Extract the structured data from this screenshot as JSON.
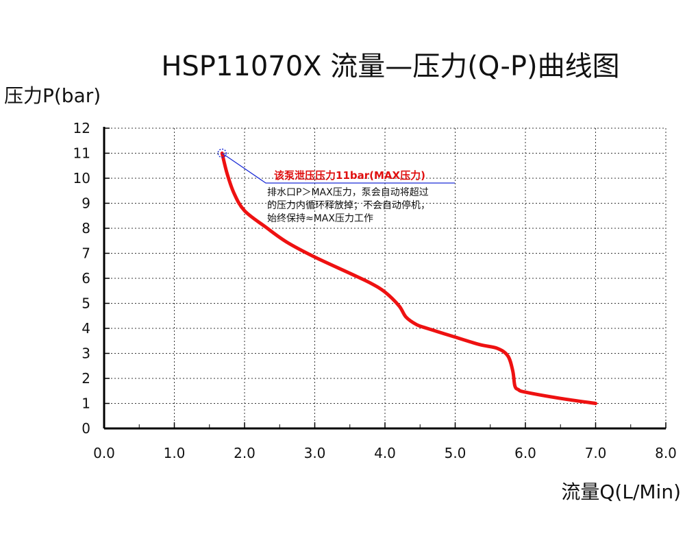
{
  "chart_data": {
    "type": "line",
    "title": "HSP11070X 流量—压力(Q-P)曲线图",
    "xlabel": "流量Q(L/Min)",
    "ylabel": "压力P(bar)",
    "xlim": [
      0,
      8
    ],
    "ylim": [
      0,
      12
    ],
    "grid": true,
    "x_ticks": [
      "0.0",
      "1.0",
      "2.0",
      "3.0",
      "4.0",
      "5.0",
      "6.0",
      "7.0",
      "8.0"
    ],
    "y_ticks": [
      "0",
      "1",
      "2",
      "3",
      "4",
      "5",
      "6",
      "7",
      "8",
      "9",
      "10",
      "11",
      "12"
    ],
    "series": [
      {
        "color": "#ee1111",
        "x": [
          1.68,
          1.75,
          1.85,
          2.0,
          2.3,
          2.6,
          3.0,
          3.5,
          3.8,
          4.0,
          4.2,
          4.3,
          4.45,
          4.6,
          5.0,
          5.35,
          5.6,
          5.75,
          5.82,
          5.85,
          5.9,
          6.0,
          6.5,
          7.0
        ],
        "y": [
          11.0,
          10.2,
          9.4,
          8.7,
          8.05,
          7.45,
          6.85,
          6.2,
          5.8,
          5.45,
          4.9,
          4.45,
          4.15,
          4.0,
          3.65,
          3.35,
          3.2,
          2.9,
          2.3,
          1.7,
          1.55,
          1.45,
          1.2,
          1.0
        ]
      }
    ],
    "annotation": {
      "marker_x": 1.68,
      "marker_y": 11.0,
      "title": "该泵泄压压力11bar(MAX压力)",
      "lines": [
        "排水口P＞MAX压力，泵会自动将超过",
        "的压力内循环释放掉；不会自动停机，",
        "始终保持≈MAX压力工作"
      ]
    }
  }
}
